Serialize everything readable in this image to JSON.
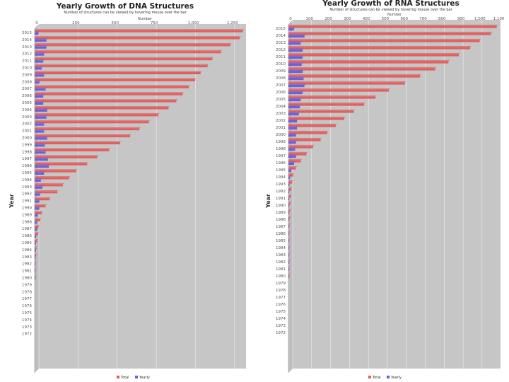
{
  "chart_data": [
    {
      "type": "bar",
      "orientation": "horizontal",
      "title": "Yearly Growth of DNA Structures",
      "subtitle": "Number of structures can be viewed by hovering mouse over the bar",
      "xlabel": "Number",
      "ylabel": "Year",
      "xlim": [
        0,
        1350
      ],
      "xticks": [
        0,
        250,
        500,
        750,
        1000,
        1250
      ],
      "xtick_labels": [
        "0",
        "250",
        "500",
        "750",
        "1,000",
        "1,250"
      ],
      "legend_position": "bottom-center",
      "categories": [
        "2015",
        "2014",
        "2013",
        "2012",
        "2011",
        "2010",
        "2009",
        "2008",
        "2007",
        "2006",
        "2005",
        "2004",
        "2003",
        "2002",
        "2001",
        "2000",
        "1999",
        "1998",
        "1997",
        "1996",
        "1995",
        "1994",
        "1993",
        "1992",
        "1991",
        "1990",
        "1989",
        "1988",
        "1987",
        "1986",
        "1985",
        "1984",
        "1983",
        "1982",
        "1981",
        "1980",
        "1979",
        "1978",
        "1977",
        "1976",
        "1975",
        "1974",
        "1973",
        "1972"
      ],
      "series": [
        {
          "name": "Total",
          "color": "#e06060",
          "values": [
            1330,
            1310,
            1250,
            1190,
            1135,
            1105,
            1060,
            1025,
            985,
            945,
            905,
            855,
            790,
            730,
            670,
            610,
            545,
            475,
            400,
            335,
            265,
            220,
            180,
            145,
            95,
            70,
            45,
            35,
            25,
            20,
            15,
            10,
            8,
            6,
            4,
            2,
            0,
            0,
            0,
            0,
            0,
            0,
            0,
            0
          ]
        },
        {
          "name": "Yearly",
          "color": "#6a62d8",
          "values": [
            25,
            75,
            75,
            60,
            55,
            45,
            60,
            30,
            70,
            55,
            55,
            80,
            75,
            60,
            60,
            80,
            65,
            70,
            85,
            90,
            60,
            40,
            50,
            35,
            30,
            30,
            20,
            15,
            15,
            10,
            8,
            8,
            6,
            5,
            4,
            3,
            0,
            0,
            0,
            0,
            0,
            0,
            0,
            0
          ]
        }
      ]
    },
    {
      "type": "bar",
      "orientation": "horizontal",
      "title": "Yearly Growth of RNA Structures",
      "subtitle": "Number of structures can be viewed by hovering mouse over the bar",
      "xlabel": "Number",
      "ylabel": "Year",
      "xlim": [
        0,
        1120
      ],
      "xticks": [
        0,
        100,
        200,
        300,
        400,
        500,
        600,
        700,
        800,
        900,
        1000,
        1100
      ],
      "xtick_labels": [
        "0",
        "100",
        "200",
        "300",
        "400",
        "500",
        "600",
        "700",
        "800",
        "900",
        "1,000",
        "1,100"
      ],
      "legend_position": "bottom-center",
      "categories": [
        "2015",
        "2014",
        "2013",
        "2012",
        "2011",
        "2010",
        "2009",
        "2008",
        "2007",
        "2006",
        "2005",
        "2004",
        "2003",
        "2002",
        "2001",
        "2000",
        "1999",
        "1998",
        "1997",
        "1996",
        "1995",
        "1994",
        "1993",
        "1992",
        "1991",
        "1990",
        "1989",
        "1988",
        "1987",
        "1986",
        "1985",
        "1984",
        "1983",
        "1982",
        "1981",
        "1980",
        "1979",
        "1978",
        "1977",
        "1976",
        "1975",
        "1974",
        "1973",
        "1972"
      ],
      "series": [
        {
          "name": "Total",
          "color": "#e06060",
          "values": [
            1100,
            1070,
            1010,
            960,
            900,
            845,
            775,
            695,
            615,
            530,
            460,
            400,
            345,
            295,
            250,
            205,
            170,
            130,
            95,
            65,
            40,
            25,
            20,
            15,
            12,
            10,
            8,
            7,
            6,
            5,
            4,
            4,
            3,
            3,
            2,
            2,
            0,
            0,
            0,
            0,
            0,
            0,
            0,
            0
          ]
        },
        {
          "name": "Yearly",
          "color": "#6a62d8",
          "values": [
            30,
            85,
            65,
            75,
            75,
            70,
            75,
            80,
            85,
            75,
            65,
            60,
            55,
            45,
            45,
            40,
            40,
            35,
            40,
            30,
            15,
            8,
            6,
            5,
            4,
            3,
            3,
            2,
            2,
            2,
            2,
            1,
            1,
            1,
            1,
            1,
            0,
            0,
            0,
            0,
            0,
            0,
            0,
            0
          ]
        }
      ]
    }
  ]
}
